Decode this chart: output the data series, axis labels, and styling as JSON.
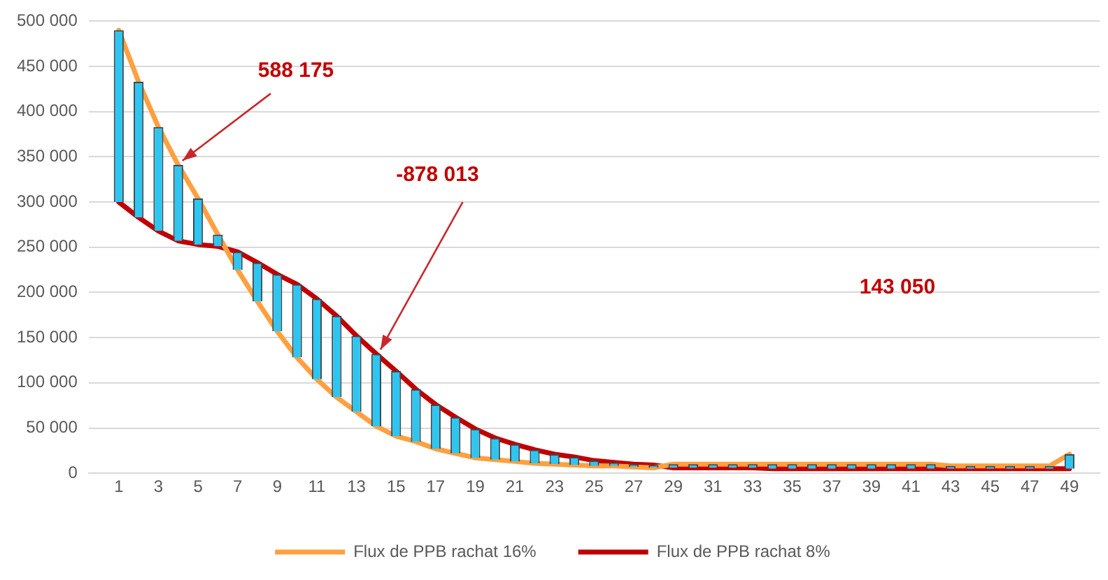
{
  "chart_data": {
    "type": "line",
    "x": [
      1,
      2,
      3,
      4,
      5,
      6,
      7,
      8,
      9,
      10,
      11,
      12,
      13,
      14,
      15,
      16,
      17,
      18,
      19,
      20,
      21,
      22,
      23,
      24,
      25,
      26,
      27,
      28,
      29,
      30,
      31,
      32,
      33,
      34,
      35,
      36,
      37,
      38,
      39,
      40,
      41,
      42,
      43,
      44,
      45,
      46,
      47,
      48,
      49
    ],
    "series": [
      {
        "type": "bar",
        "color": "#2ec6f0",
        "base": [
          300000,
          283000,
          268000,
          257000,
          253000,
          251000,
          245000,
          233000,
          220000,
          209000,
          193000,
          174000,
          152000,
          132000,
          113000,
          93000,
          76000,
          62000,
          49000,
          39000,
          32000,
          26000,
          21000,
          18000,
          14000,
          12000,
          10000,
          9000,
          6000,
          6000,
          6000,
          6000,
          6000,
          5000,
          5000,
          5000,
          5000,
          5000,
          5000,
          5000,
          5000,
          5000,
          5000,
          5000,
          5000,
          5000,
          5000,
          5000,
          5000
        ],
        "values": [
          190000,
          150000,
          115000,
          84000,
          51000,
          13000,
          -20000,
          -43000,
          -63000,
          -81000,
          -89000,
          -90000,
          -84000,
          -80000,
          -72000,
          -58000,
          -49000,
          -40000,
          -32000,
          -24000,
          -19000,
          -15000,
          -11000,
          -9000,
          -6000,
          -4000,
          -3000,
          -3000,
          4000,
          4000,
          4000,
          4000,
          4000,
          5000,
          5000,
          5000,
          5000,
          5000,
          5000,
          5000,
          5000,
          5000,
          3000,
          3000,
          3000,
          3000,
          3000,
          3000,
          16000
        ]
      },
      {
        "name": "Flux de PPB rachat 16%",
        "color": "#ffa040",
        "values": [
          490000,
          433000,
          383000,
          341000,
          304000,
          264000,
          225000,
          190000,
          157000,
          128000,
          104000,
          84000,
          68000,
          52000,
          41000,
          35000,
          27000,
          22000,
          17000,
          15000,
          13000,
          11000,
          10000,
          9000,
          8000,
          8000,
          7000,
          6000,
          10000,
          10000,
          10000,
          10000,
          10000,
          10000,
          10000,
          10000,
          10000,
          10000,
          10000,
          10000,
          10000,
          10000,
          8000,
          8000,
          8000,
          8000,
          8000,
          8000,
          21000
        ]
      },
      {
        "name": "Flux de PPB rachat 8%",
        "color": "#c00000",
        "values": [
          300000,
          283000,
          268000,
          257000,
          253000,
          251000,
          245000,
          233000,
          220000,
          209000,
          193000,
          174000,
          152000,
          132000,
          113000,
          93000,
          76000,
          62000,
          49000,
          39000,
          32000,
          26000,
          21000,
          18000,
          14000,
          12000,
          10000,
          9000,
          6000,
          6000,
          6000,
          6000,
          6000,
          5000,
          5000,
          5000,
          5000,
          5000,
          5000,
          5000,
          5000,
          5000,
          5000,
          5000,
          5000,
          5000,
          5000,
          5000,
          5000
        ]
      }
    ],
    "xlim": [
      0.5,
      49.5
    ],
    "xticks": [
      1,
      3,
      5,
      7,
      9,
      11,
      13,
      15,
      17,
      19,
      21,
      23,
      25,
      27,
      29,
      31,
      33,
      35,
      37,
      39,
      41,
      43,
      45,
      47,
      49
    ],
    "ylim": [
      0,
      500000
    ],
    "yticks": [
      0,
      {
        "value": 50000,
        "label": "50 000"
      },
      {
        "value": 100000,
        "label": "100 000"
      },
      {
        "value": 150000,
        "label": "150 000"
      },
      {
        "value": 200000,
        "label": "200 000"
      },
      {
        "value": 250000,
        "label": "250 000"
      },
      {
        "value": 300000,
        "label": "300 000"
      },
      {
        "value": 350000,
        "label": "350 000"
      },
      {
        "value": 400000,
        "label": "400 000"
      },
      {
        "value": 450000,
        "label": "450 000"
      },
      {
        "value": 500000,
        "label": "500 000"
      }
    ],
    "grid": "y",
    "legend": "bottom",
    "marker": "none",
    "annotations": [
      {
        "text": "588 175",
        "x": 4,
        "y": 341000
      },
      {
        "text": "-878 013",
        "x": 14,
        "y": 132000
      },
      "143 050"
    ]
  }
}
